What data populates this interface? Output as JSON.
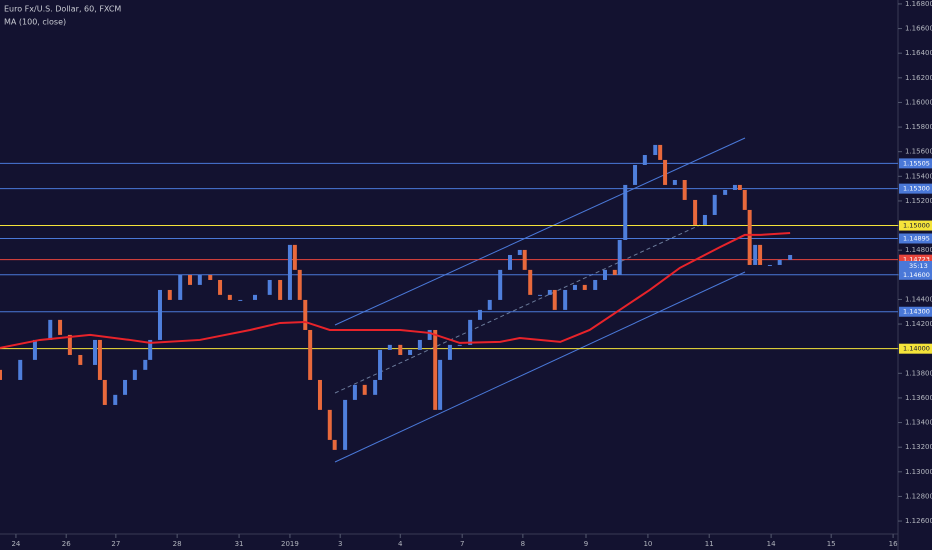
{
  "chart_data": {
    "type": "candlestick",
    "title": "Euro Fx/U.S. Dollar, 60, FXCM",
    "subtitle": "MA (100, close)",
    "up_color": "#4f7fdc",
    "down_color": "#e8693c",
    "xlim": [
      0,
      14.65
    ],
    "xticks": [
      {
        "value": 0.26,
        "label": "24"
      },
      {
        "value": 1.08,
        "label": "26"
      },
      {
        "value": 1.89,
        "label": "27"
      },
      {
        "value": 2.89,
        "label": "28"
      },
      {
        "value": 3.9,
        "label": "31"
      },
      {
        "value": 4.73,
        "label": "2019"
      },
      {
        "value": 5.55,
        "label": "3"
      },
      {
        "value": 6.53,
        "label": "4"
      },
      {
        "value": 7.54,
        "label": "7"
      },
      {
        "value": 8.53,
        "label": "8"
      },
      {
        "value": 9.56,
        "label": "9"
      },
      {
        "value": 10.57,
        "label": "10"
      },
      {
        "value": 11.57,
        "label": "11"
      },
      {
        "value": 12.58,
        "label": "14"
      },
      {
        "value": 13.56,
        "label": "15"
      },
      {
        "value": 14.57,
        "label": "16"
      }
    ],
    "ylim": [
      1.12503,
      1.16832
    ],
    "yticks": [
      {
        "value": 1.126,
        "label": "1.12600"
      },
      {
        "value": 1.128,
        "label": "1.12800"
      },
      {
        "value": 1.13,
        "label": "1.13000"
      },
      {
        "value": 1.132,
        "label": "1.13200"
      },
      {
        "value": 1.134,
        "label": "1.13400"
      },
      {
        "value": 1.136,
        "label": "1.13600"
      },
      {
        "value": 1.138,
        "label": "1.13800"
      },
      {
        "value": 1.14,
        "label": "1.14000"
      },
      {
        "value": 1.142,
        "label": "1.14200"
      },
      {
        "value": 1.144,
        "label": "1.14400"
      },
      {
        "value": 1.146,
        "label": "1.14600"
      },
      {
        "value": 1.148,
        "label": "1.14800"
      },
      {
        "value": 1.15,
        "label": "1.15000"
      },
      {
        "value": 1.152,
        "label": "1.15200"
      },
      {
        "value": 1.154,
        "label": "1.15400"
      },
      {
        "value": 1.156,
        "label": "1.15600"
      },
      {
        "value": 1.158,
        "label": "1.15800"
      },
      {
        "value": 1.16,
        "label": "1.16000"
      },
      {
        "value": 1.162,
        "label": "1.16200"
      },
      {
        "value": 1.164,
        "label": "1.16400"
      },
      {
        "value": 1.166,
        "label": "1.16600"
      },
      {
        "value": 1.168,
        "label": "1.16800"
      }
    ],
    "grid": false,
    "x": [
      0,
      0.33,
      0.57,
      0.82,
      0.98,
      1.14,
      1.31,
      1.55,
      1.63,
      1.71,
      1.88,
      2.04,
      2.2,
      2.37,
      2.45,
      2.61,
      2.77,
      2.94,
      3.1,
      3.26,
      3.43,
      3.59,
      3.75,
      3.92,
      4.16,
      4.4,
      4.57,
      4.73,
      4.81,
      4.89,
      4.98,
      5.06,
      5.22,
      5.38,
      5.46,
      5.63,
      5.79,
      5.95,
      6.12,
      6.2,
      6.36,
      6.53,
      6.69,
      6.85,
      7.01,
      7.1,
      7.18,
      7.34,
      7.5,
      7.67,
      7.83,
      7.99,
      8.16,
      8.32,
      8.48,
      8.56,
      8.65,
      8.81,
      8.97,
      9.05,
      9.22,
      9.38,
      9.54,
      9.71,
      9.87,
      10.03,
      10.11,
      10.2,
      10.36,
      10.52,
      10.69,
      10.77,
      10.85,
      11.01,
      11.17,
      11.34,
      11.5,
      11.66,
      11.83,
      11.99,
      12.07,
      12.15,
      12.23,
      12.32,
      12.4,
      12.56,
      12.72,
      12.89
    ],
    "close": [
      1.13746,
      1.13909,
      1.14071,
      1.14234,
      1.14112,
      1.13949,
      1.13868,
      1.14071,
      1.13746,
      1.13543,
      1.13625,
      1.13746,
      1.13828,
      1.13909,
      1.14071,
      1.14477,
      1.14396,
      1.14599,
      1.14518,
      1.14599,
      1.14558,
      1.14437,
      1.14396,
      1.14396,
      1.14437,
      1.14558,
      1.14396,
      1.14843,
      1.1464,
      1.14396,
      1.14152,
      1.13746,
      1.13503,
      1.13259,
      1.13178,
      1.13584,
      1.13706,
      1.13625,
      1.13746,
      1.1399,
      1.14031,
      1.13949,
      1.1399,
      1.14071,
      1.14152,
      1.13503,
      1.13909,
      1.14031,
      1.14031,
      1.14234,
      1.14315,
      1.14396,
      1.1464,
      1.14761,
      1.14802,
      1.1464,
      1.14437,
      1.14437,
      1.14477,
      1.14315,
      1.14477,
      1.14518,
      1.14477,
      1.14558,
      1.1464,
      1.14599,
      1.14883,
      1.1533,
      1.15492,
      1.15573,
      1.15655,
      1.15533,
      1.1533,
      1.1537,
      1.15208,
      1.15005,
      1.15086,
      1.15249,
      1.15289,
      1.1533,
      1.15289,
      1.15127,
      1.1468,
      1.14843,
      1.1468,
      1.1468,
      1.14721,
      1.14761
    ],
    "open": [
      1.13828,
      1.13746,
      1.13909,
      1.14071,
      1.14234,
      1.14112,
      1.13949,
      1.13868,
      1.14071,
      1.13746,
      1.13543,
      1.13625,
      1.13746,
      1.13828,
      1.13909,
      1.14071,
      1.14477,
      1.14396,
      1.14599,
      1.14518,
      1.14599,
      1.14558,
      1.14437,
      1.14396,
      1.14396,
      1.14437,
      1.14558,
      1.14396,
      1.14843,
      1.1464,
      1.14396,
      1.14152,
      1.13746,
      1.13503,
      1.13259,
      1.13178,
      1.13584,
      1.13706,
      1.13625,
      1.13746,
      1.1399,
      1.14031,
      1.13949,
      1.1399,
      1.14071,
      1.14152,
      1.13503,
      1.13909,
      1.14031,
      1.14031,
      1.14234,
      1.14315,
      1.14396,
      1.1464,
      1.14761,
      1.14802,
      1.1464,
      1.14437,
      1.14437,
      1.14477,
      1.14315,
      1.14477,
      1.14518,
      1.14477,
      1.14558,
      1.1464,
      1.14599,
      1.14883,
      1.1533,
      1.15492,
      1.15573,
      1.15655,
      1.15533,
      1.1533,
      1.1537,
      1.15208,
      1.15005,
      1.15086,
      1.15249,
      1.15289,
      1.1533,
      1.15289,
      1.15127,
      1.1468,
      1.14843,
      1.1468,
      1.1468,
      1.14721
    ],
    "ma": {
      "color": "#e8232a",
      "x": [
        0,
        0.65,
        1.47,
        2.12,
        2.45,
        3.26,
        4.08,
        4.57,
        4.98,
        5.38,
        5.87,
        6.53,
        7.01,
        7.5,
        8.16,
        8.48,
        9.14,
        9.62,
        10.11,
        10.6,
        11.09,
        11.75,
        12.15,
        12.4,
        12.89
      ],
      "values": [
        1.14006,
        1.14071,
        1.14112,
        1.14071,
        1.14047,
        1.14071,
        1.14152,
        1.14209,
        1.14217,
        1.14152,
        1.14152,
        1.14152,
        1.14128,
        1.14047,
        1.14055,
        1.14087,
        1.14055,
        1.14152,
        1.14315,
        1.14477,
        1.14656,
        1.14826,
        1.14924,
        1.14924,
        1.1494
      ]
    },
    "levels": [
      {
        "value": 1.15505,
        "label": "1.15505",
        "color": "#4a78d8"
      },
      {
        "value": 1.153,
        "label": "1.15300",
        "color": "#4a78d8"
      },
      {
        "value": 1.15,
        "label": "1.15000",
        "color": "#f5e43a"
      },
      {
        "value": 1.14895,
        "label": "1.14895",
        "color": "#4a78d8"
      },
      {
        "value": 1.14723,
        "label": "1.14723",
        "color": "#e8453c"
      },
      {
        "value": 1.146,
        "label": "1.14600",
        "color": "#4a78d8"
      },
      {
        "value": 1.143,
        "label": "1.14300",
        "color": "#4a78d8"
      },
      {
        "value": 1.14,
        "label": "1.14000",
        "color": "#f5e43a"
      }
    ],
    "countdown": "35:13"
  }
}
